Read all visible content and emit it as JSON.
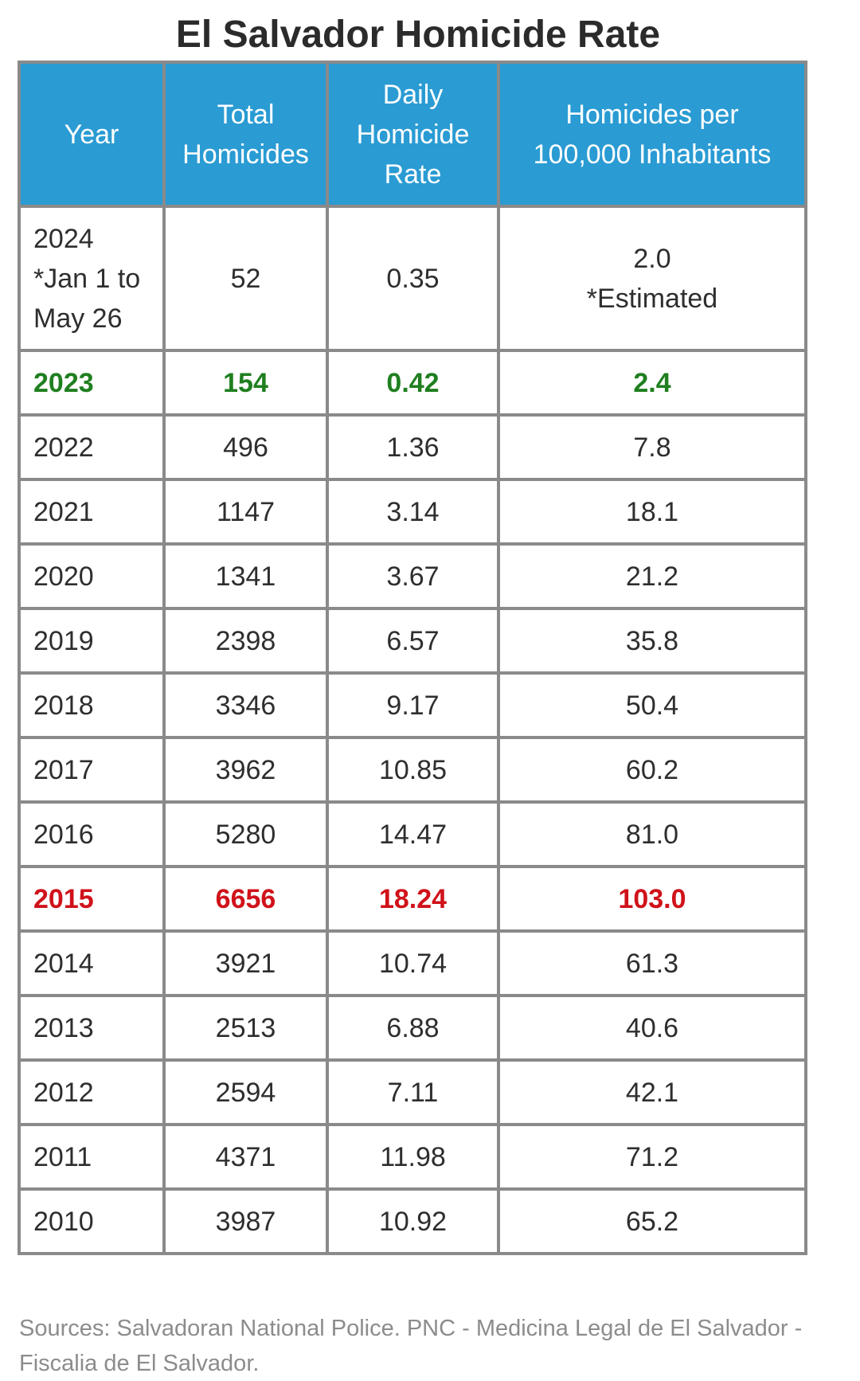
{
  "chart_data": {
    "type": "table",
    "title": "El Salvador Homicide Rate",
    "columns": [
      "Year",
      "Total Homicides",
      "Daily Homicide Rate",
      "Homicides per 100,000 Inhabitants"
    ],
    "rows": [
      {
        "year": "2024",
        "year_note_1": "*Jan 1 to",
        "year_note_2": "May 26",
        "total": "52",
        "daily": "0.35",
        "per100k": "2.0",
        "per100k_note": "*Estimated"
      },
      {
        "year": "2023",
        "total": "154",
        "daily": "0.42",
        "per100k": "2.4"
      },
      {
        "year": "2022",
        "total": "496",
        "daily": "1.36",
        "per100k": "7.8"
      },
      {
        "year": "2021",
        "total": "1147",
        "daily": "3.14",
        "per100k": "18.1"
      },
      {
        "year": "2020",
        "total": "1341",
        "daily": "3.67",
        "per100k": "21.2"
      },
      {
        "year": "2019",
        "total": "2398",
        "daily": "6.57",
        "per100k": "35.8"
      },
      {
        "year": "2018",
        "total": "3346",
        "daily": "9.17",
        "per100k": "50.4"
      },
      {
        "year": "2017",
        "total": "3962",
        "daily": "10.85",
        "per100k": "60.2"
      },
      {
        "year": "2016",
        "total": "5280",
        "daily": "14.47",
        "per100k": "81.0"
      },
      {
        "year": "2015",
        "total": "6656",
        "daily": "18.24",
        "per100k": "103.0"
      },
      {
        "year": "2014",
        "total": "3921",
        "daily": "10.74",
        "per100k": "61.3"
      },
      {
        "year": "2013",
        "total": "2513",
        "daily": "6.88",
        "per100k": "40.6"
      },
      {
        "year": "2012",
        "total": "2594",
        "daily": "7.11",
        "per100k": "42.1"
      },
      {
        "year": "2011",
        "total": "4371",
        "daily": "11.98",
        "per100k": "71.2"
      },
      {
        "year": "2010",
        "total": "3987",
        "daily": "10.92",
        "per100k": "65.2"
      }
    ],
    "highlights": {
      "green_row_year": "2023",
      "red_row_year": "2015"
    }
  },
  "header": {
    "year": "Year",
    "total_1": "Total",
    "total_2": "Homicides",
    "daily_1": "Daily",
    "daily_2": "Homicide",
    "daily_3": "Rate",
    "per100k_1": "Homicides per",
    "per100k_2": "100,000 Inhabitants"
  },
  "sources": {
    "line1": "Sources: Salvadoran National Police. PNC - Medicina Legal de El Salvador -",
    "line2": "Fiscalia de El Salvador."
  },
  "colors": {
    "header_bg": "#2a9bd3",
    "border": "#8a8a8a",
    "green": "#1f7f1f",
    "red": "#d0121a",
    "text": "#2e2e2e",
    "sources": "#8c8c8c"
  }
}
